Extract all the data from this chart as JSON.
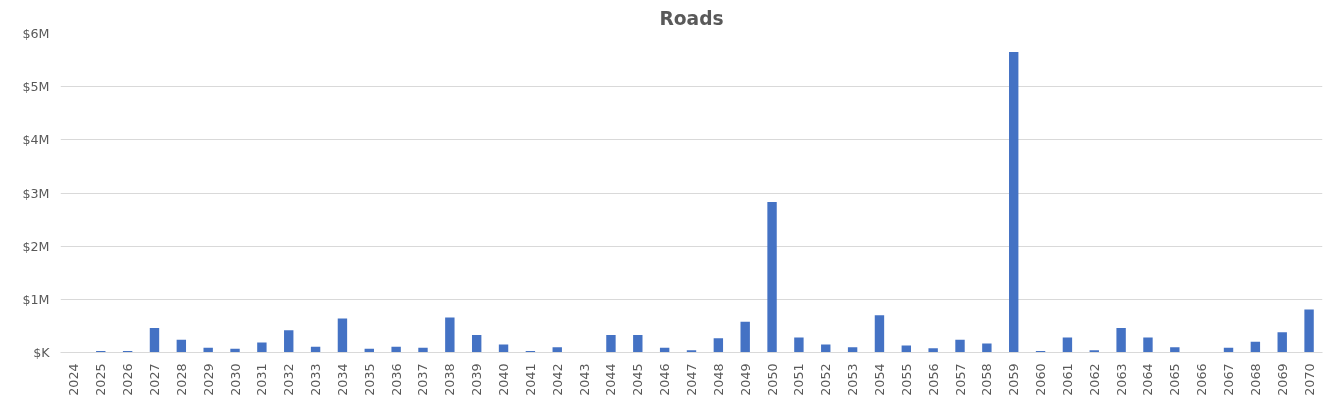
{
  "chart_data": {
    "type": "bar",
    "title": "Roads",
    "color": "#4472c4",
    "categories": [
      "2024",
      "2025",
      "2026",
      "2027",
      "2028",
      "2029",
      "2030",
      "2031",
      "2032",
      "2033",
      "2034",
      "2035",
      "2036",
      "2037",
      "2038",
      "2039",
      "2040",
      "2041",
      "2042",
      "2043",
      "2044",
      "2045",
      "2046",
      "2047",
      "2048",
      "2049",
      "2050",
      "2051",
      "2052",
      "2053",
      "2054",
      "2055",
      "2056",
      "2057",
      "2058",
      "2059",
      "2060",
      "2061",
      "2062",
      "2063",
      "2064",
      "2065",
      "2066",
      "2067",
      "2068",
      "2069",
      "2070"
    ],
    "values": [
      0,
      0.03,
      0.03,
      0.46,
      0.24,
      0.09,
      0.07,
      0.19,
      0.42,
      0.11,
      0.64,
      0.07,
      0.11,
      0.09,
      0.66,
      0.33,
      0.15,
      0.03,
      0.1,
      0,
      0.33,
      0.33,
      0.09,
      0.04,
      0.27,
      0.58,
      2.83,
      0.28,
      0.15,
      0.1,
      0.7,
      0.13,
      0.08,
      0.24,
      0.17,
      5.65,
      0.03,
      0.28,
      0.04,
      0.46,
      0.28,
      0.1,
      0,
      0.09,
      0.2,
      0.38,
      0.81
    ],
    "ylim": [
      0,
      6
    ],
    "yticks": [
      {
        "value": 0,
        "label": "$K"
      },
      {
        "value": 1,
        "label": "$1M"
      },
      {
        "value": 2,
        "label": "$2M"
      },
      {
        "value": 3,
        "label": "$3M"
      },
      {
        "value": 4,
        "label": "$4M"
      },
      {
        "value": 5,
        "label": "$5M"
      },
      {
        "value": 6,
        "label": "$6M"
      }
    ],
    "grid": "y"
  }
}
